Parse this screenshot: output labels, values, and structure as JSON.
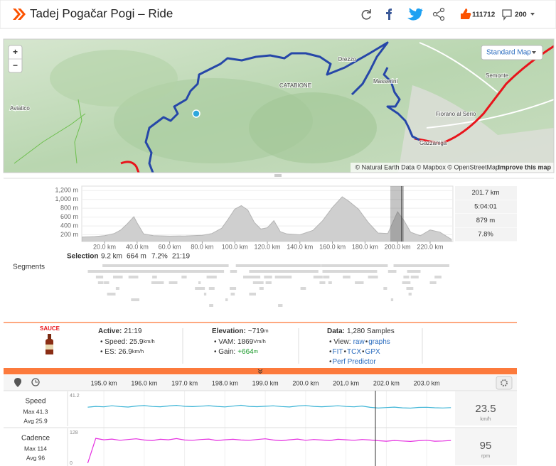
{
  "header": {
    "title": "Tadej Pogačar Pogi – Ride",
    "kudos": "111712",
    "comments": "200"
  },
  "map": {
    "layer": "Standard Map",
    "zoom_in": "+",
    "zoom_out": "−",
    "places": [
      "Aviatico",
      "CATABIONE",
      "Orezzo",
      "Masserini",
      "Semonte",
      "Fiorano al Serio",
      "Gazzaniga"
    ],
    "attribution": "© Natural Earth Data © Mapbox © OpenStreetMap",
    "improve": "Improve this map"
  },
  "elevation_chart": {
    "type": "area",
    "color": "#cfcfcf",
    "x": [
      6,
      14,
      20,
      26,
      30,
      34,
      38,
      40,
      44,
      50,
      60,
      70,
      80,
      86,
      92,
      96,
      100,
      104,
      108,
      112,
      116,
      120,
      124,
      128,
      132,
      140,
      148,
      154,
      160,
      166,
      170,
      176,
      182,
      188,
      194,
      200,
      204,
      208,
      214,
      220,
      226,
      233
    ],
    "values": [
      150,
      160,
      180,
      230,
      310,
      450,
      610,
      470,
      220,
      180,
      170,
      175,
      190,
      230,
      350,
      560,
      780,
      860,
      760,
      480,
      330,
      360,
      520,
      270,
      220,
      200,
      300,
      520,
      820,
      1060,
      960,
      780,
      480,
      240,
      230,
      720,
      520,
      260,
      180,
      310,
      260,
      100
    ],
    "xlim": [
      6,
      234
    ],
    "ylim": [
      0,
      1300
    ],
    "xticks": [
      {
        "value": 20,
        "label": "20.0 km"
      },
      {
        "value": 40,
        "label": "40.0 km"
      },
      {
        "value": 60,
        "label": "60.0 km"
      },
      {
        "value": 80,
        "label": "80.0 km"
      },
      {
        "value": 100,
        "label": "100.0 km"
      },
      {
        "value": 120,
        "label": "120.0 km"
      },
      {
        "value": 140,
        "label": "140.0 km"
      },
      {
        "value": 160,
        "label": "160.0 km"
      },
      {
        "value": 180,
        "label": "180.0 km"
      },
      {
        "value": 200,
        "label": "200.0 km"
      },
      {
        "value": 220,
        "label": "220.0 km"
      }
    ],
    "yticks": [
      {
        "value": 1200,
        "label": "1,200 m"
      },
      {
        "value": 1000,
        "label": "1,000 m"
      },
      {
        "value": 800,
        "label": "800 m"
      },
      {
        "value": 600,
        "label": "600 m"
      },
      {
        "value": 400,
        "label": "400 m"
      },
      {
        "value": 200,
        "label": "200 m"
      }
    ],
    "stats": [
      "201.7 km",
      "5:04:01",
      "879 m",
      "7.8%"
    ]
  },
  "selection": {
    "label": "Selection",
    "values": [
      "9.2 km",
      "664 m",
      "7.2%",
      "21:19"
    ]
  },
  "segments": {
    "label": "Segments"
  },
  "sauce": {
    "brand": "SAUCE",
    "active": {
      "label": "Active:",
      "value": "21:19",
      "items": [
        {
          "label": "• Speed:",
          "value": "25.9",
          "unit": "km/h"
        },
        {
          "label": "• ES:",
          "value": "26.9",
          "unit": "km/h"
        }
      ]
    },
    "elevation": {
      "label": "Elevation:",
      "value": "~719",
      "unit": "m",
      "items": [
        {
          "label": "• VAM:",
          "value": "1869",
          "unit": "Vm/h"
        },
        {
          "label": "• Gain:",
          "value": "+664",
          "unit": "m"
        }
      ]
    },
    "data": {
      "label": "Data:",
      "value": "1,280 Samples",
      "view_line": [
        "• View:",
        "raw",
        "•",
        "graphs"
      ],
      "format_line": [
        "•",
        "FIT",
        "•",
        "TCX",
        "•",
        "GPX"
      ],
      "predictor_line": [
        "•",
        "Perf Predictor"
      ]
    }
  },
  "streams": {
    "x": [
      194.6,
      194.8,
      195.0,
      195.2,
      195.4,
      195.6,
      195.8,
      196.0,
      196.2,
      196.4,
      196.6,
      196.8,
      197.0,
      197.2,
      197.4,
      197.6,
      197.8,
      198.0,
      198.2,
      198.4,
      198.6,
      198.8,
      199.0,
      199.2,
      199.4,
      199.6,
      199.8,
      200.0,
      200.2,
      200.4,
      200.6,
      200.8,
      201.0,
      201.2,
      201.4,
      201.6,
      201.8,
      202.0,
      202.2,
      202.4,
      202.6,
      202.8,
      203.0,
      203.2,
      203.4,
      203.6
    ],
    "xlim": [
      194.1,
      203.65
    ],
    "xticks": [
      {
        "value": 195,
        "label": "195.0 km"
      },
      {
        "value": 196,
        "label": "196.0 km"
      },
      {
        "value": 197,
        "label": "197.0 km"
      },
      {
        "value": 198,
        "label": "198.0 km"
      },
      {
        "value": 199,
        "label": "199.0 km"
      },
      {
        "value": 200,
        "label": "200.0 km"
      },
      {
        "value": 201,
        "label": "201.0 km"
      },
      {
        "value": 202,
        "label": "202.0 km"
      },
      {
        "value": 203,
        "label": "203.0 km"
      }
    ],
    "series": [
      {
        "name": "Speed",
        "max": "Max 41.3",
        "avg": "Avg 25.9",
        "color": "#3cb4d6",
        "ylim": [
          0,
          41.2
        ],
        "yticks": [
          41.2
        ],
        "current": "23.5",
        "unit": "km/h",
        "values": [
          24.1,
          25.3,
          24.6,
          26.2,
          25.0,
          24.3,
          25.8,
          26.5,
          25.1,
          24.7,
          25.9,
          26.8,
          25.4,
          24.9,
          25.6,
          26.3,
          25.2,
          24.5,
          25.7,
          26.9,
          25.3,
          24.8,
          25.5,
          26.1,
          25.0,
          24.4,
          25.9,
          26.6,
          25.2,
          24.7,
          25.4,
          26.2,
          25.1,
          24.6,
          25.8,
          23.9,
          22.8,
          23.6,
          24.2,
          23.1,
          22.7,
          23.8,
          24.0,
          23.2,
          22.9,
          23.5
        ]
      },
      {
        "name": "Cadence",
        "max": "Max 114",
        "avg": "Avg 96",
        "color": "#e52fe0",
        "ylim": [
          0,
          128
        ],
        "yticks": [
          0,
          128
        ],
        "current": "95",
        "unit": "rpm",
        "values": [
          0,
          104,
          98,
          101,
          96,
          99,
          102,
          97,
          95,
          100,
          98,
          103,
          97,
          96,
          99,
          101,
          95,
          98,
          100,
          97,
          96,
          99,
          102,
          97,
          94,
          98,
          101,
          96,
          99,
          97,
          95,
          100,
          98,
          96,
          99,
          97,
          94,
          92,
          95,
          93,
          91,
          94,
          96,
          92,
          93,
          95
        ]
      }
    ]
  }
}
